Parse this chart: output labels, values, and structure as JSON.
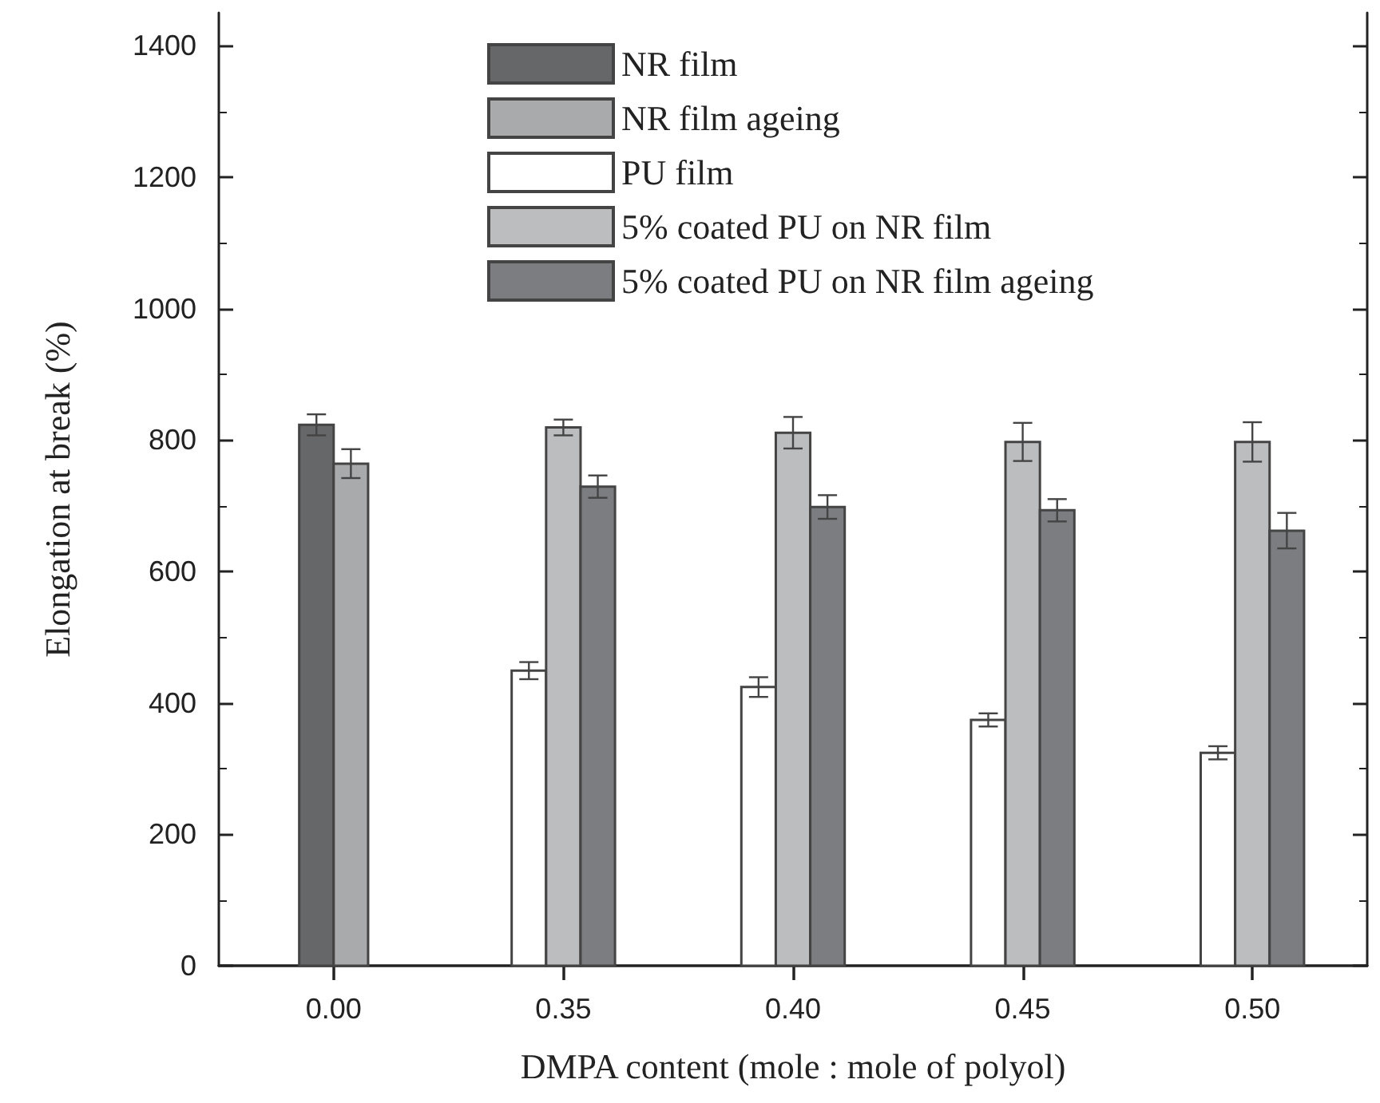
{
  "chart_data": {
    "type": "bar",
    "xlabel": "DMPA content (mole : mole of polyol)",
    "ylabel": "Elongation at break (%)",
    "categories": [
      "0.00",
      "0.35",
      "0.40",
      "0.45",
      "0.50"
    ],
    "series": [
      {
        "name": "NR film",
        "color": "#666769",
        "values": [
          823,
          null,
          null,
          null,
          null
        ],
        "errors": [
          16,
          null,
          null,
          null,
          null
        ]
      },
      {
        "name": "NR film ageing",
        "color": "#a9aaac",
        "values": [
          764,
          null,
          null,
          null,
          null
        ],
        "errors": [
          22,
          null,
          null,
          null,
          null
        ]
      },
      {
        "name": "PU film",
        "color": "#ffffff",
        "values": [
          null,
          449,
          424,
          374,
          324
        ],
        "errors": [
          null,
          13,
          15,
          10,
          10
        ]
      },
      {
        "name": "5% coated PU on NR film",
        "color": "#bcbdbf",
        "values": [
          null,
          819,
          811,
          797,
          797
        ],
        "errors": [
          null,
          12,
          24,
          29,
          30
        ]
      },
      {
        "name": "5% coated PU on NR film ageing",
        "color": "#7b7d80",
        "values": [
          null,
          729,
          698,
          693,
          662
        ],
        "errors": [
          null,
          17,
          18,
          17,
          27
        ]
      }
    ],
    "ylim": [
      0,
      1450
    ],
    "yticks": [
      0,
      200,
      400,
      600,
      800,
      1000,
      1200,
      1400
    ],
    "grid": false,
    "legend": "top"
  }
}
